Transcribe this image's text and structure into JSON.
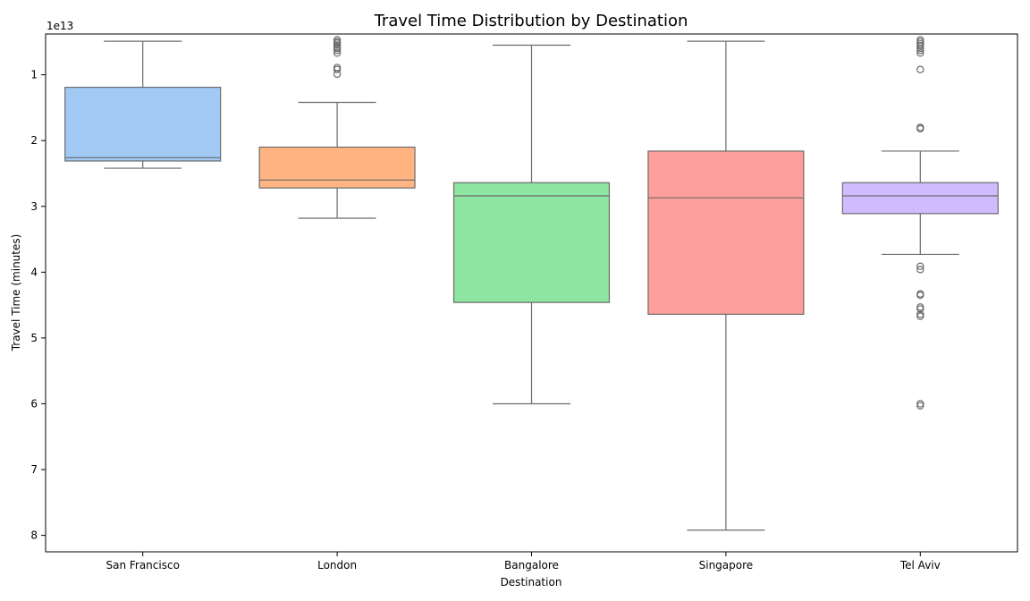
{
  "chart_data": {
    "type": "box",
    "title": "Travel Time Distribution by Destination",
    "xlabel": "Destination",
    "ylabel": "Travel Time (minutes)",
    "y_multiplier_label": "1e13",
    "y_inverted": true,
    "ylim": [
      0.38,
      8.25
    ],
    "yticks": [
      {
        "value": 1,
        "label": "1"
      },
      {
        "value": 2,
        "label": "2"
      },
      {
        "value": 3,
        "label": "3"
      },
      {
        "value": 4,
        "label": "4"
      },
      {
        "value": 5,
        "label": "5"
      },
      {
        "value": 6,
        "label": "6"
      },
      {
        "value": 7,
        "label": "7"
      },
      {
        "value": 8,
        "label": "8"
      }
    ],
    "grid": false,
    "categories": [
      "San Francisco",
      "London",
      "Bangalore",
      "Singapore",
      "Tel Aviv"
    ],
    "boxes": [
      {
        "category": "San Francisco",
        "color": "#a1c9f4",
        "whisker_low": 0.49,
        "q1": 1.19,
        "median": 2.26,
        "q3": 2.31,
        "whisker_high": 2.42,
        "outliers": []
      },
      {
        "category": "London",
        "color": "#ffb482",
        "whisker_low": 1.42,
        "q1": 2.1,
        "median": 2.6,
        "q3": 2.72,
        "whisker_high": 3.18,
        "outliers": [
          0.47,
          0.5,
          0.52,
          0.55,
          0.58,
          0.6,
          0.63,
          0.67,
          0.89,
          0.92,
          0.99
        ]
      },
      {
        "category": "Bangalore",
        "color": "#8de5a1",
        "whisker_low": 0.55,
        "q1": 2.64,
        "median": 2.84,
        "q3": 4.46,
        "whisker_high": 6.0,
        "outliers": []
      },
      {
        "category": "Singapore",
        "color": "#ff9f9b",
        "whisker_low": 0.49,
        "q1": 2.16,
        "median": 2.87,
        "q3": 4.64,
        "whisker_high": 7.92,
        "outliers": []
      },
      {
        "category": "Tel Aviv",
        "color": "#d0bbff",
        "whisker_low": 2.16,
        "q1": 2.64,
        "median": 2.84,
        "q3": 3.11,
        "whisker_high": 3.73,
        "outliers": [
          0.47,
          0.5,
          0.53,
          0.56,
          0.6,
          0.63,
          0.67,
          0.92,
          1.8,
          1.82,
          3.91,
          3.96,
          4.33,
          4.35,
          4.53,
          4.56,
          4.64,
          4.67,
          6.0,
          6.03
        ]
      }
    ]
  }
}
